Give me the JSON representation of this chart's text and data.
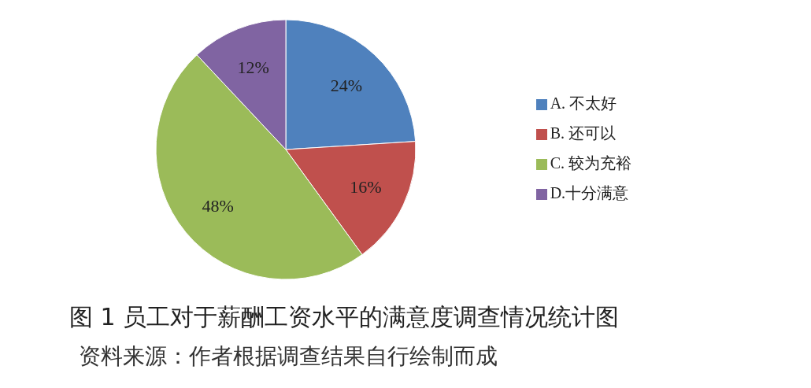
{
  "chart_data": {
    "type": "pie",
    "title": "图 1 员工对于薪酬工资水平的满意度调查情况统计图",
    "annotations": [
      "资料来源：作者根据调查结果自行绘制而成"
    ],
    "categories": [
      "A. 不太好",
      "B. 还可以",
      "C. 较为充裕",
      "D.十分满意"
    ],
    "values": [
      24,
      16,
      48,
      12
    ],
    "colors": [
      "#4f81bd",
      "#c0504d",
      "#9bbb59",
      "#8064a2"
    ],
    "value_labels": [
      "24%",
      "16%",
      "48%",
      "12%"
    ],
    "legend": "right"
  }
}
